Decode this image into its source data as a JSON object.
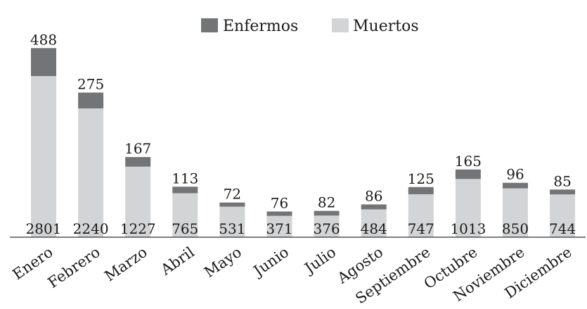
{
  "chart_data": {
    "type": "bar",
    "stacked": true,
    "title": "",
    "xlabel": "",
    "ylabel": "",
    "categories": [
      "Enero",
      "Febrero",
      "Marzo",
      "Abril",
      "Mayo",
      "Junio",
      "Julio",
      "Agosto",
      "Septiembre",
      "Octubre",
      "Noviembre",
      "Diciembre"
    ],
    "series": [
      {
        "name": "Muertos",
        "color": "#d3d4d6",
        "values": [
          2801,
          2240,
          1227,
          765,
          531,
          371,
          376,
          484,
          747,
          1013,
          850,
          744
        ]
      },
      {
        "name": "Enfermos",
        "color": "#737476",
        "values": [
          488,
          275,
          167,
          113,
          72,
          76,
          82,
          86,
          125,
          165,
          96,
          85
        ]
      }
    ],
    "legend": {
      "position": "top-center",
      "order": [
        "Enfermos",
        "Muertos"
      ]
    },
    "axis_color": "#333333",
    "grid": false
  }
}
